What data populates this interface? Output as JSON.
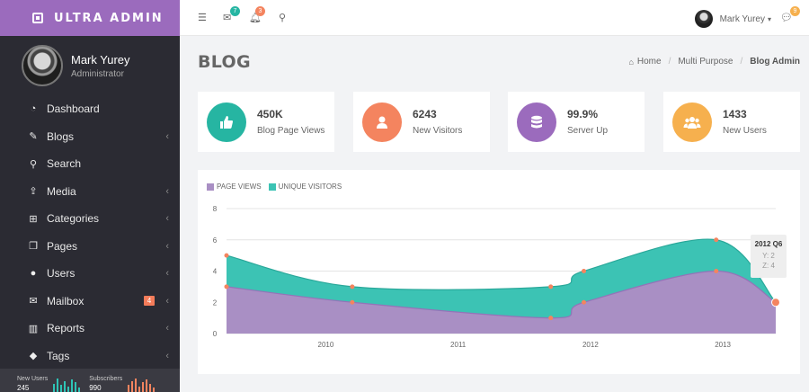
{
  "brand": {
    "name": "ULTRA ADMIN"
  },
  "user": {
    "name": "Mark Yurey",
    "role": "Administrator",
    "topbar_name": "Mark Yurey"
  },
  "topbar": {
    "mail_badge": "7",
    "bell_badge": "3",
    "chat_badge": "9"
  },
  "menu": [
    {
      "label": "Dashboard",
      "icon": "dashboard-icon",
      "glyph": "◔",
      "chev": false
    },
    {
      "label": "Blogs",
      "icon": "edit-icon",
      "glyph": "✎",
      "chev": true
    },
    {
      "label": "Search",
      "icon": "search-icon",
      "glyph": "⚲",
      "chev": false
    },
    {
      "label": "Media",
      "icon": "upload-icon",
      "glyph": "⇪",
      "chev": true
    },
    {
      "label": "Categories",
      "icon": "sitemap-icon",
      "glyph": "⊞",
      "chev": true
    },
    {
      "label": "Pages",
      "icon": "copy-icon",
      "glyph": "❐",
      "chev": true
    },
    {
      "label": "Users",
      "icon": "user-icon",
      "glyph": "●",
      "chev": true
    },
    {
      "label": "Mailbox",
      "icon": "envelope-icon",
      "glyph": "✉",
      "chev": true,
      "badge": "4"
    },
    {
      "label": "Reports",
      "icon": "bar-chart-icon",
      "glyph": "▥",
      "chev": true
    },
    {
      "label": "Tags",
      "icon": "tag-icon",
      "glyph": "◆",
      "chev": true
    }
  ],
  "sidebar_footer": [
    {
      "label": "New Users",
      "value": "245",
      "color": "#2ec4b6",
      "bars": [
        0.6,
        1.0,
        0.5,
        0.8,
        0.4,
        0.9,
        0.7,
        0.3
      ]
    },
    {
      "label": "Subscribers",
      "value": "990",
      "color": "#f4845f",
      "bars": [
        0.5,
        0.8,
        1.0,
        0.4,
        0.7,
        0.9,
        0.6,
        0.3
      ]
    }
  ],
  "page": {
    "title": "BLOG"
  },
  "breadcrumb": {
    "home": "Home",
    "parent": "Multi Purpose",
    "current": "Blog Admin"
  },
  "stats": [
    {
      "value": "450K",
      "label": "Blog Page Views",
      "color": "#26b5a2",
      "icon": "thumbs-up-icon"
    },
    {
      "value": "6243",
      "label": "New Visitors",
      "color": "#f4845f",
      "icon": "user-icon"
    },
    {
      "value": "99.9%",
      "label": "Server Up",
      "color": "#9b6bbd",
      "icon": "database-icon"
    },
    {
      "value": "1433",
      "label": "New Users",
      "color": "#f6b04e",
      "icon": "users-icon"
    }
  ],
  "chart_data": {
    "type": "area",
    "series": [
      {
        "name": "PAGE VIEWS",
        "color": "#a98fc4",
        "x": [
          2009.25,
          2010.2,
          2011.7,
          2011.95,
          2012.95,
          2013.4
        ],
        "values": [
          3,
          2,
          1,
          2,
          4,
          2
        ]
      },
      {
        "name": "UNIQUE VISITORS",
        "color": "#3cc3b4",
        "x": [
          2009.25,
          2010.2,
          2011.7,
          2011.95,
          2012.95,
          2013.4
        ],
        "values": [
          2,
          1,
          2,
          2,
          2,
          0
        ]
      }
    ],
    "x_ticks": [
      "2010",
      "2011",
      "2012",
      "2013"
    ],
    "y_ticks": [
      "0",
      "2",
      "4",
      "6",
      "8"
    ],
    "ylim": [
      0,
      8
    ],
    "xlim": [
      2009.25,
      2013.4
    ],
    "tooltip": {
      "title": "2012 Q6",
      "line1": "Y: 2",
      "line2": "Z: 4"
    }
  }
}
